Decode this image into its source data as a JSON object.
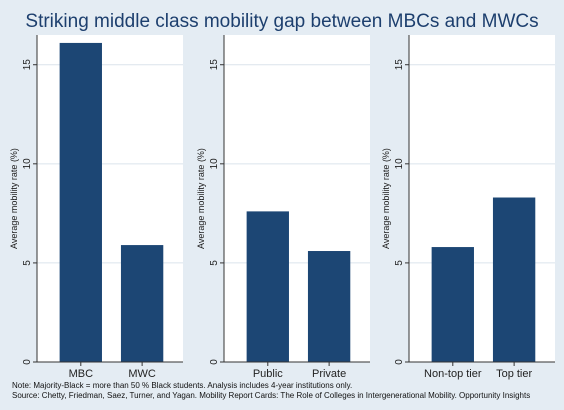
{
  "title": "Striking middle class mobility gap between MBCs and MWCs",
  "notes": [
    "Note: Majority-Black = more than 50 % Black students. Analysis includes 4-year institutions only.",
    "Source: Chetty, Friedman, Saez, Turner, and Yagan. Mobility Report Cards: The Role of Colleges in Intergenerational Mobility. Opportunity Insights"
  ],
  "colors": {
    "bar": "#1c4674",
    "background": "#e4ecf3",
    "plot_background": "#ffffff",
    "title": "#1d3f6e",
    "grid": "#dbe4ec"
  },
  "chart_data": [
    {
      "type": "bar",
      "categories": [
        "MBC",
        "MWC"
      ],
      "values": [
        16.1,
        5.9
      ],
      "xlabel": "",
      "ylabel": "Average mobility rate (%)",
      "ylim": [
        0,
        16.5
      ],
      "yticks": [
        0,
        5,
        10,
        15
      ],
      "grid": true
    },
    {
      "type": "bar",
      "categories": [
        "Public",
        "Private"
      ],
      "values": [
        7.6,
        5.6
      ],
      "xlabel": "",
      "ylabel": "Average mobility rate (%)",
      "ylim": [
        0,
        16.5
      ],
      "yticks": [
        0,
        5,
        10,
        15
      ],
      "grid": true
    },
    {
      "type": "bar",
      "categories": [
        "Non-top tier",
        "Top tier"
      ],
      "values": [
        5.8,
        8.3
      ],
      "xlabel": "",
      "ylabel": "Average mobility rate (%)",
      "ylim": [
        0,
        16.5
      ],
      "yticks": [
        0,
        5,
        10,
        15
      ],
      "grid": true
    }
  ]
}
